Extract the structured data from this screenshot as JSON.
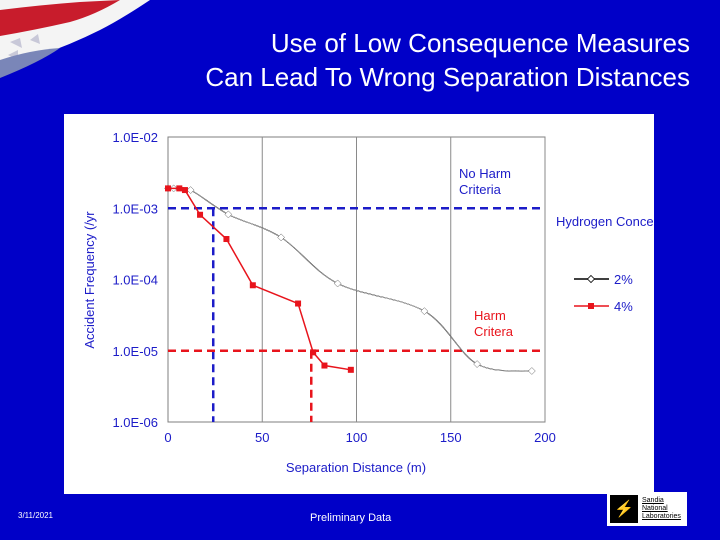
{
  "slide": {
    "title_line1": "Use of Low Consequence Measures",
    "title_line2": "Can Lead To Wrong Separation Distances",
    "date": "3/11/2021",
    "footer_note": "Preliminary Data",
    "logo": {
      "line1": "Sandia",
      "line2": "National",
      "line3": "Laboratories",
      "icon": "sandia-thunderbird-icon"
    },
    "flag_icon": "waving-flag-icon"
  },
  "colors": {
    "background": "#0000c8",
    "series_2pct": "#ffffff",
    "series_4pct": "#e8141c",
    "no_harm_line": "#1c1cc8",
    "harm_line": "#e8141c"
  },
  "chart_data": {
    "type": "line",
    "title": "",
    "xlabel": "Separation Distance (m)",
    "ylabel": "Accident Frequency (/yr",
    "xlim": [
      0,
      200
    ],
    "ylim_log10": [
      -6,
      -2
    ],
    "x_ticks": [
      0,
      50,
      100,
      150,
      200
    ],
    "x_tick_labels": [
      "0",
      "50",
      "100",
      "150",
      "200"
    ],
    "y_ticks_log10": [
      -2,
      -3,
      -4,
      -5,
      -6
    ],
    "y_tick_labels": [
      "1.0E-02",
      "1.0E-03",
      "1.0E-04",
      "1.0E-05",
      "1.0E-06"
    ],
    "grid": "vertical",
    "legend_title": "Hydrogen Concentration",
    "legend_placement": "right",
    "series": [
      {
        "name": "2%",
        "marker": "diamond",
        "points": [
          [
            0,
            0.0019
          ],
          [
            3,
            0.0019
          ],
          [
            12,
            0.0018
          ],
          [
            32,
            0.00082
          ],
          [
            60,
            0.00039
          ],
          [
            90,
            8.8e-05
          ],
          [
            136,
            3.6e-05
          ],
          [
            164,
            6.5e-06
          ],
          [
            193,
            5.2e-06
          ]
        ]
      },
      {
        "name": "4%",
        "marker": "square",
        "points": [
          [
            0,
            0.0019
          ],
          [
            6,
            0.0019
          ],
          [
            9,
            0.0018
          ],
          [
            17,
            0.00081
          ],
          [
            31,
            0.00037
          ],
          [
            45,
            8.3e-05
          ],
          [
            69,
            4.6e-05
          ],
          [
            77,
            9.5e-06
          ],
          [
            83,
            6.2e-06
          ],
          [
            97,
            5.4e-06
          ]
        ]
      }
    ],
    "reference_lines": [
      {
        "name": "No Harm Criteria",
        "label_line1": "No Harm",
        "label_line2": "Criteria",
        "y": 0.001,
        "x_cross": 24,
        "style": "dashed"
      },
      {
        "name": "Harm Critera",
        "label_line1": "Harm",
        "label_line2": "Critera",
        "y": 1e-05,
        "x_cross": 76,
        "style": "dashed"
      }
    ]
  }
}
